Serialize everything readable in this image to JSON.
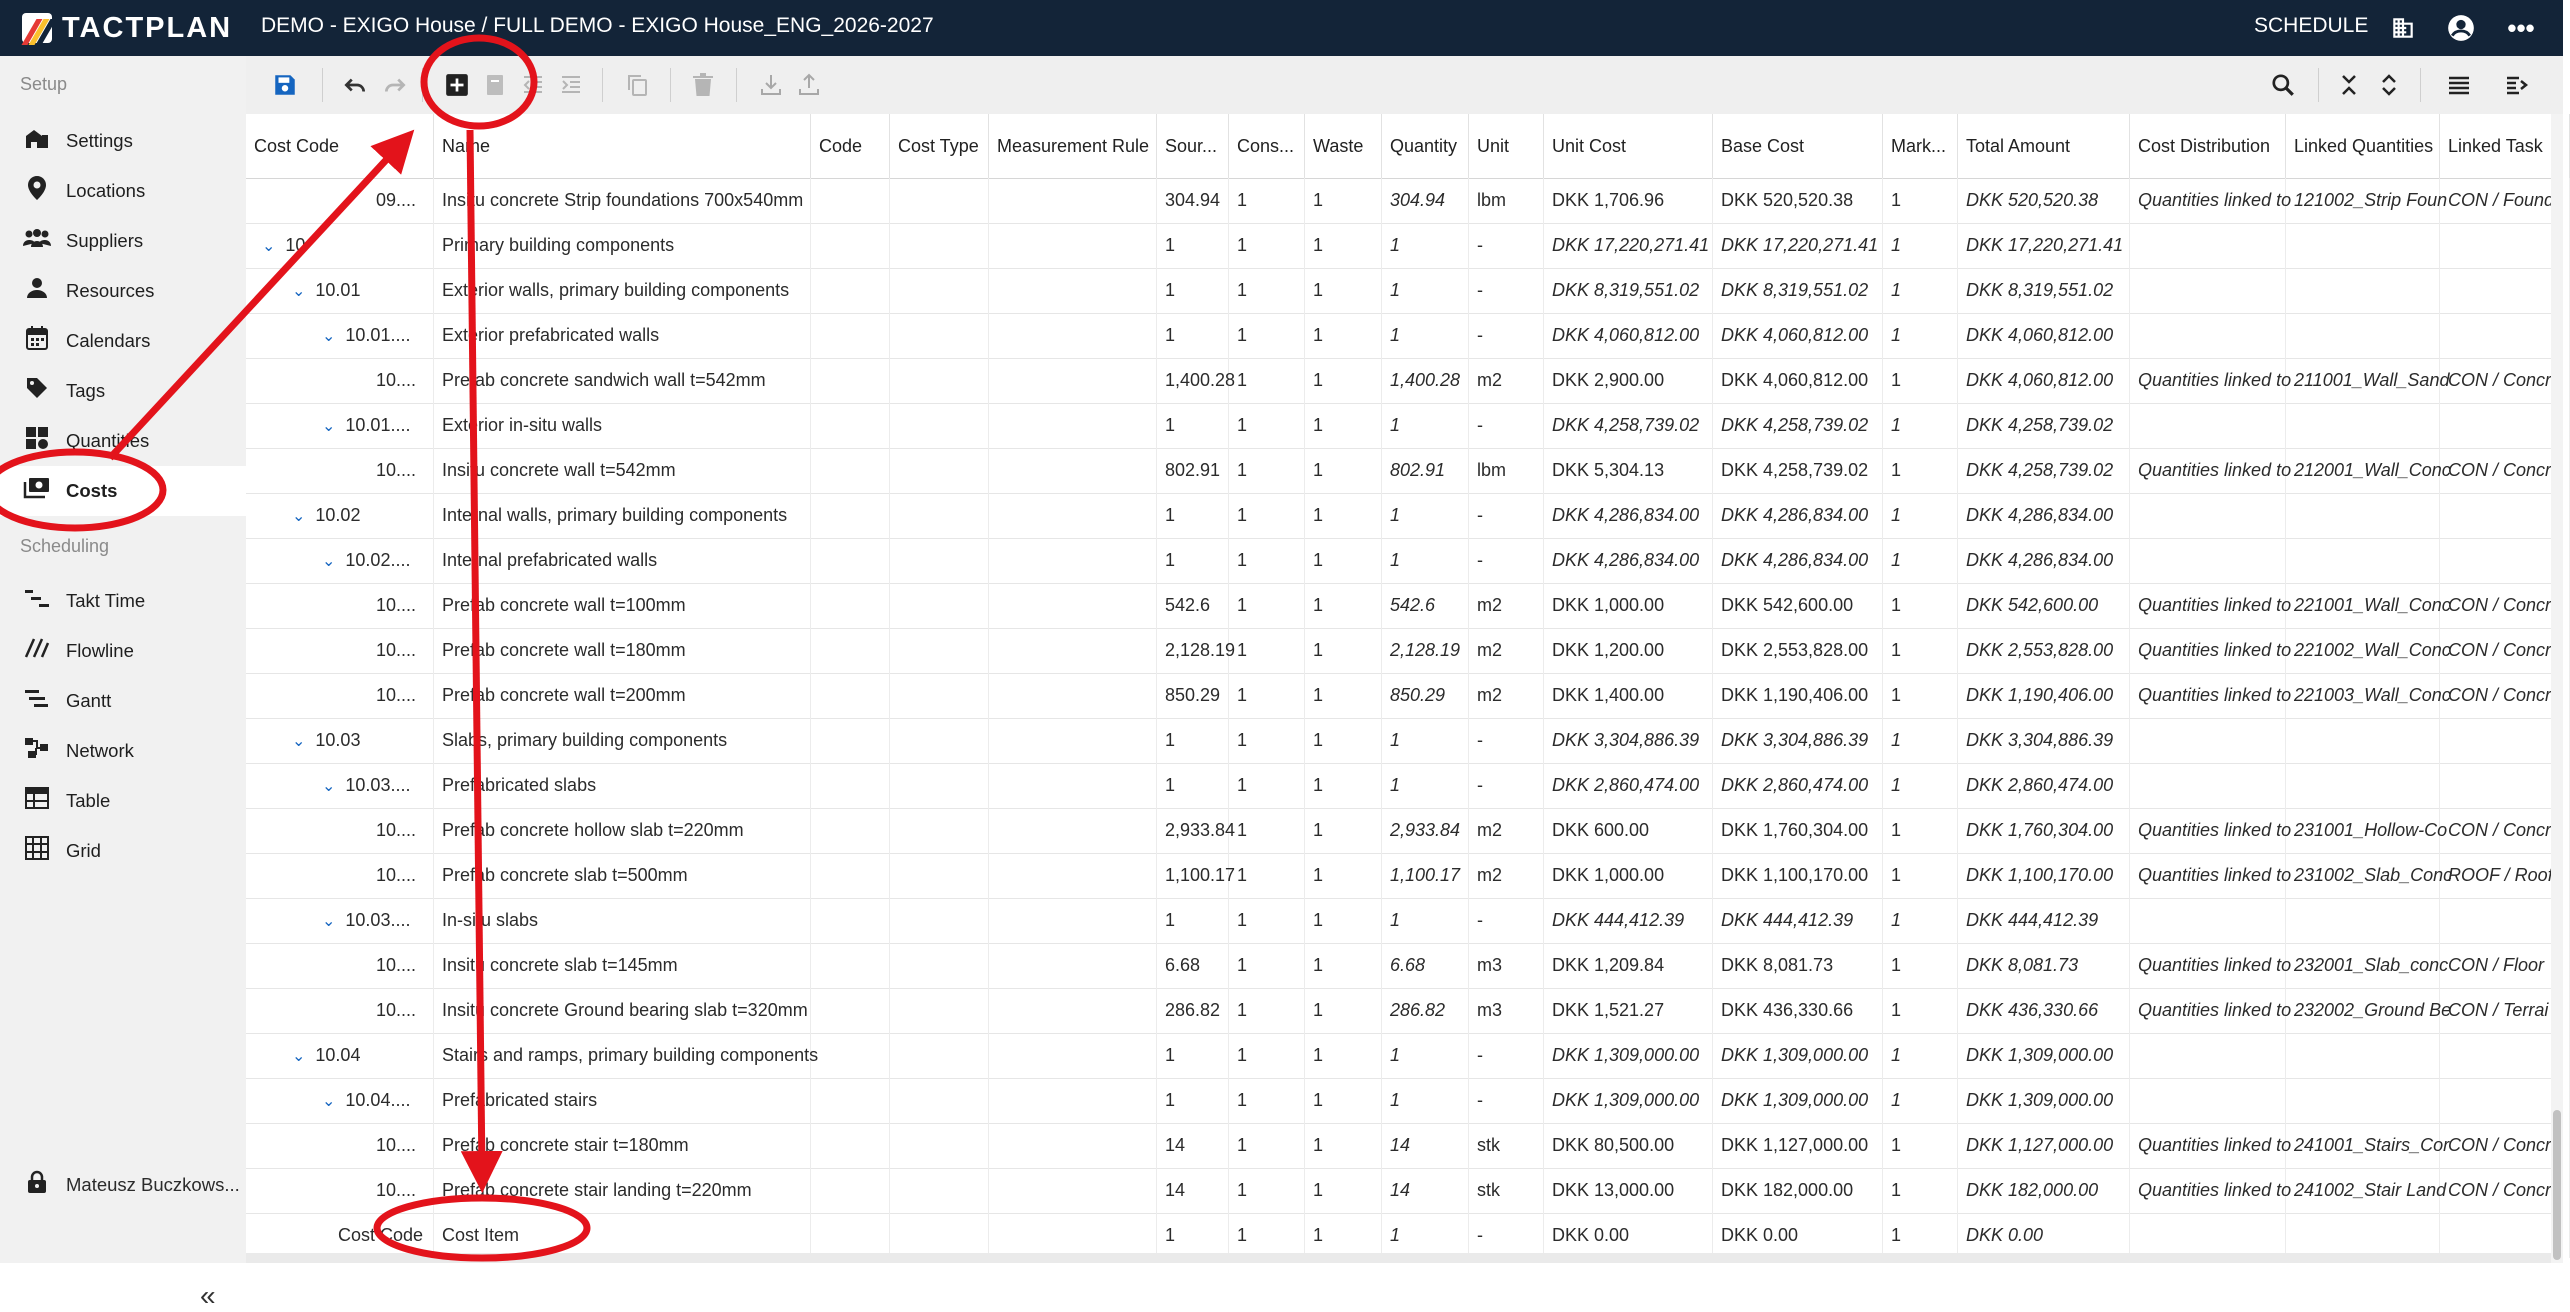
{
  "app": {
    "logo": "TACTPLAN",
    "project_title": "DEMO - EXIGO House / FULL DEMO - EXIGO House_ENG_2026-2027",
    "schedule_label": "SCHEDULE"
  },
  "icons": {
    "building": "building-icon",
    "account": "account-circle-icon",
    "more": "more-horizontal-icon"
  },
  "colors": {
    "topbar": "#132438",
    "accent": "#1565c0",
    "annotation": "#e3131b"
  },
  "sidebar": {
    "setup_label": "Setup",
    "setup_items": [
      {
        "label": "Settings",
        "icon": "settings-icon"
      },
      {
        "label": "Locations",
        "icon": "location-pin-icon"
      },
      {
        "label": "Suppliers",
        "icon": "suppliers-icon"
      },
      {
        "label": "Resources",
        "icon": "person-icon"
      },
      {
        "label": "Calendars",
        "icon": "calendar-icon"
      },
      {
        "label": "Tags",
        "icon": "tag-icon"
      },
      {
        "label": "Quantities",
        "icon": "quantities-icon"
      },
      {
        "label": "Costs",
        "icon": "costs-icon",
        "active": true
      }
    ],
    "scheduling_label": "Scheduling",
    "scheduling_items": [
      {
        "label": "Takt Time",
        "icon": "takt-time-icon"
      },
      {
        "label": "Flowline",
        "icon": "flowline-icon"
      },
      {
        "label": "Gantt",
        "icon": "gantt-icon"
      },
      {
        "label": "Network",
        "icon": "network-icon"
      },
      {
        "label": "Table",
        "icon": "table-icon"
      },
      {
        "label": "Grid",
        "icon": "grid-icon"
      }
    ],
    "user": "Mateusz Buczkows...",
    "collapse_glyph": "«"
  },
  "toolbar": {
    "left": [
      "save-icon",
      "undo-icon",
      "redo-icon",
      "add-item-icon",
      "add-child-icon",
      "outdent-icon",
      "indent-icon",
      "copy-icon",
      "delete-icon",
      "import-icon",
      "export-icon"
    ],
    "right": [
      "search-icon",
      "collapse-all-icon",
      "expand-all-icon",
      "row-density-icon",
      "column-settings-icon"
    ]
  },
  "table": {
    "columns": [
      "Cost Code",
      "Name",
      "Code",
      "Cost Type",
      "Measurement Rule",
      "Sour...",
      "Cons...",
      "Waste",
      "Quantity",
      "Unit",
      "Unit Cost",
      "Base Cost",
      "Mark...",
      "Total Amount",
      "Cost Distribution",
      "Linked Quantities",
      "Linked Task"
    ],
    "rows": [
      {
        "level": 3,
        "exp": false,
        "code": "09....",
        "name": "Insitu concrete Strip foundations 700x540mm",
        "src": "304.94",
        "cons": "1",
        "waste": "1",
        "qty": "304.94",
        "unit": "lbm",
        "unitcost": "DKK 1,706.96",
        "base": "DKK 520,520.38",
        "mark": "1",
        "total": "DKK 520,520.38",
        "dist": "Quantities linked to",
        "lq": "121002_Strip Foun",
        "lt": "CON / Found",
        "sum": false
      },
      {
        "level": 0,
        "exp": true,
        "code": "10",
        "name": "Primary building components",
        "src": "1",
        "cons": "1",
        "waste": "1",
        "qty": "1",
        "unit": "-",
        "unitcost": "DKK 17,220,271.41",
        "base": "DKK 17,220,271.41",
        "mark": "1",
        "total": "DKK 17,220,271.41",
        "dist": "",
        "lq": "",
        "lt": "",
        "sum": true
      },
      {
        "level": 1,
        "exp": true,
        "code": "10.01",
        "name": "Exterior walls, primary building components",
        "src": "1",
        "cons": "1",
        "waste": "1",
        "qty": "1",
        "unit": "-",
        "unitcost": "DKK 8,319,551.02",
        "base": "DKK 8,319,551.02",
        "mark": "1",
        "total": "DKK 8,319,551.02",
        "dist": "",
        "lq": "",
        "lt": "",
        "sum": true
      },
      {
        "level": 2,
        "exp": true,
        "code": "10.01....",
        "name": "Exterior prefabricated walls",
        "src": "1",
        "cons": "1",
        "waste": "1",
        "qty": "1",
        "unit": "-",
        "unitcost": "DKK 4,060,812.00",
        "base": "DKK 4,060,812.00",
        "mark": "1",
        "total": "DKK 4,060,812.00",
        "dist": "",
        "lq": "",
        "lt": "",
        "sum": true
      },
      {
        "level": 3,
        "exp": false,
        "code": "10....",
        "name": "Prefab concrete sandwich wall t=542mm",
        "src": "1,400.28",
        "cons": "1",
        "waste": "1",
        "qty": "1,400.28",
        "unit": "m2",
        "unitcost": "DKK 2,900.00",
        "base": "DKK 4,060,812.00",
        "mark": "1",
        "total": "DKK 4,060,812.00",
        "dist": "Quantities linked to",
        "lq": "211001_Wall_Sand",
        "lt": "CON / Concr",
        "sum": false
      },
      {
        "level": 2,
        "exp": true,
        "code": "10.01....",
        "name": "Exterior in-situ walls",
        "src": "1",
        "cons": "1",
        "waste": "1",
        "qty": "1",
        "unit": "-",
        "unitcost": "DKK 4,258,739.02",
        "base": "DKK 4,258,739.02",
        "mark": "1",
        "total": "DKK 4,258,739.02",
        "dist": "",
        "lq": "",
        "lt": "",
        "sum": true
      },
      {
        "level": 3,
        "exp": false,
        "code": "10....",
        "name": "Insitu concrete wall t=542mm",
        "src": "802.91",
        "cons": "1",
        "waste": "1",
        "qty": "802.91",
        "unit": "lbm",
        "unitcost": "DKK 5,304.13",
        "base": "DKK 4,258,739.02",
        "mark": "1",
        "total": "DKK 4,258,739.02",
        "dist": "Quantities linked to",
        "lq": "212001_Wall_Conc",
        "lt": "CON / Concr",
        "sum": false
      },
      {
        "level": 1,
        "exp": true,
        "code": "10.02",
        "name": "Internal walls, primary building components",
        "src": "1",
        "cons": "1",
        "waste": "1",
        "qty": "1",
        "unit": "-",
        "unitcost": "DKK 4,286,834.00",
        "base": "DKK 4,286,834.00",
        "mark": "1",
        "total": "DKK 4,286,834.00",
        "dist": "",
        "lq": "",
        "lt": "",
        "sum": true
      },
      {
        "level": 2,
        "exp": true,
        "code": "10.02....",
        "name": "Internal prefabricated walls",
        "src": "1",
        "cons": "1",
        "waste": "1",
        "qty": "1",
        "unit": "-",
        "unitcost": "DKK 4,286,834.00",
        "base": "DKK 4,286,834.00",
        "mark": "1",
        "total": "DKK 4,286,834.00",
        "dist": "",
        "lq": "",
        "lt": "",
        "sum": true
      },
      {
        "level": 3,
        "exp": false,
        "code": "10....",
        "name": "Prefab concrete wall t=100mm",
        "src": "542.6",
        "cons": "1",
        "waste": "1",
        "qty": "542.6",
        "unit": "m2",
        "unitcost": "DKK 1,000.00",
        "base": "DKK 542,600.00",
        "mark": "1",
        "total": "DKK 542,600.00",
        "dist": "Quantities linked to",
        "lq": "221001_Wall_Conc",
        "lt": "CON / Concr",
        "sum": false
      },
      {
        "level": 3,
        "exp": false,
        "code": "10....",
        "name": "Prefab concrete wall t=180mm",
        "src": "2,128.19",
        "cons": "1",
        "waste": "1",
        "qty": "2,128.19",
        "unit": "m2",
        "unitcost": "DKK 1,200.00",
        "base": "DKK 2,553,828.00",
        "mark": "1",
        "total": "DKK 2,553,828.00",
        "dist": "Quantities linked to",
        "lq": "221002_Wall_Conc",
        "lt": "CON / Concr",
        "sum": false
      },
      {
        "level": 3,
        "exp": false,
        "code": "10....",
        "name": "Prefab concrete wall t=200mm",
        "src": "850.29",
        "cons": "1",
        "waste": "1",
        "qty": "850.29",
        "unit": "m2",
        "unitcost": "DKK 1,400.00",
        "base": "DKK 1,190,406.00",
        "mark": "1",
        "total": "DKK 1,190,406.00",
        "dist": "Quantities linked to",
        "lq": "221003_Wall_Conc",
        "lt": "CON / Concr",
        "sum": false
      },
      {
        "level": 1,
        "exp": true,
        "code": "10.03",
        "name": "Slabs, primary building components",
        "src": "1",
        "cons": "1",
        "waste": "1",
        "qty": "1",
        "unit": "-",
        "unitcost": "DKK 3,304,886.39",
        "base": "DKK 3,304,886.39",
        "mark": "1",
        "total": "DKK 3,304,886.39",
        "dist": "",
        "lq": "",
        "lt": "",
        "sum": true
      },
      {
        "level": 2,
        "exp": true,
        "code": "10.03....",
        "name": "Prefabricated slabs",
        "src": "1",
        "cons": "1",
        "waste": "1",
        "qty": "1",
        "unit": "-",
        "unitcost": "DKK 2,860,474.00",
        "base": "DKK 2,860,474.00",
        "mark": "1",
        "total": "DKK 2,860,474.00",
        "dist": "",
        "lq": "",
        "lt": "",
        "sum": true
      },
      {
        "level": 3,
        "exp": false,
        "code": "10....",
        "name": "Prefab concrete hollow slab t=220mm",
        "src": "2,933.84",
        "cons": "1",
        "waste": "1",
        "qty": "2,933.84",
        "unit": "m2",
        "unitcost": "DKK 600.00",
        "base": "DKK 1,760,304.00",
        "mark": "1",
        "total": "DKK 1,760,304.00",
        "dist": "Quantities linked to",
        "lq": "231001_Hollow-Co",
        "lt": "CON / Concr",
        "sum": false
      },
      {
        "level": 3,
        "exp": false,
        "code": "10....",
        "name": "Prefab concrete slab t=500mm",
        "src": "1,100.17",
        "cons": "1",
        "waste": "1",
        "qty": "1,100.17",
        "unit": "m2",
        "unitcost": "DKK 1,000.00",
        "base": "DKK 1,100,170.00",
        "mark": "1",
        "total": "DKK 1,100,170.00",
        "dist": "Quantities linked to",
        "lq": "231002_Slab_Conc",
        "lt": "ROOF / Roof",
        "sum": false
      },
      {
        "level": 2,
        "exp": true,
        "code": "10.03....",
        "name": "In-situ slabs",
        "src": "1",
        "cons": "1",
        "waste": "1",
        "qty": "1",
        "unit": "-",
        "unitcost": "DKK 444,412.39",
        "base": "DKK 444,412.39",
        "mark": "1",
        "total": "DKK 444,412.39",
        "dist": "",
        "lq": "",
        "lt": "",
        "sum": true
      },
      {
        "level": 3,
        "exp": false,
        "code": "10....",
        "name": "Insitu concrete slab t=145mm",
        "src": "6.68",
        "cons": "1",
        "waste": "1",
        "qty": "6.68",
        "unit": "m3",
        "unitcost": "DKK 1,209.84",
        "base": "DKK 8,081.73",
        "mark": "1",
        "total": "DKK 8,081.73",
        "dist": "Quantities linked to",
        "lq": "232001_Slab_conc",
        "lt": "CON / Floor",
        "sum": false
      },
      {
        "level": 3,
        "exp": false,
        "code": "10....",
        "name": "Insitu concrete Ground bearing slab t=320mm",
        "src": "286.82",
        "cons": "1",
        "waste": "1",
        "qty": "286.82",
        "unit": "m3",
        "unitcost": "DKK 1,521.27",
        "base": "DKK 436,330.66",
        "mark": "1",
        "total": "DKK 436,330.66",
        "dist": "Quantities linked to",
        "lq": "232002_Ground Be",
        "lt": "CON / Terrai",
        "sum": false
      },
      {
        "level": 1,
        "exp": true,
        "code": "10.04",
        "name": "Stairs and ramps, primary building components",
        "src": "1",
        "cons": "1",
        "waste": "1",
        "qty": "1",
        "unit": "-",
        "unitcost": "DKK 1,309,000.00",
        "base": "DKK 1,309,000.00",
        "mark": "1",
        "total": "DKK 1,309,000.00",
        "dist": "",
        "lq": "",
        "lt": "",
        "sum": true
      },
      {
        "level": 2,
        "exp": true,
        "code": "10.04....",
        "name": "Prefabricated stairs",
        "src": "1",
        "cons": "1",
        "waste": "1",
        "qty": "1",
        "unit": "-",
        "unitcost": "DKK 1,309,000.00",
        "base": "DKK 1,309,000.00",
        "mark": "1",
        "total": "DKK 1,309,000.00",
        "dist": "",
        "lq": "",
        "lt": "",
        "sum": true
      },
      {
        "level": 3,
        "exp": false,
        "code": "10....",
        "name": "Prefab concrete stair t=180mm",
        "src": "14",
        "cons": "1",
        "waste": "1",
        "qty": "14",
        "unit": "stk",
        "unitcost": "DKK 80,500.00",
        "base": "DKK 1,127,000.00",
        "mark": "1",
        "total": "DKK 1,127,000.00",
        "dist": "Quantities linked to",
        "lq": "241001_Stairs_Cor",
        "lt": "CON / Concr",
        "sum": false
      },
      {
        "level": 3,
        "exp": false,
        "code": "10....",
        "name": "Prefab concrete stair landing t=220mm",
        "src": "14",
        "cons": "1",
        "waste": "1",
        "qty": "14",
        "unit": "stk",
        "unitcost": "DKK 13,000.00",
        "base": "DKK 182,000.00",
        "mark": "1",
        "total": "DKK 182,000.00",
        "dist": "Quantities linked to",
        "lq": "241002_Stair Land",
        "lt": "CON / Concr",
        "sum": false
      },
      {
        "level": 4,
        "exp": false,
        "code": "Cost Code",
        "name": "Cost Item",
        "src": "1",
        "cons": "1",
        "waste": "1",
        "qty": "1",
        "unit": "-",
        "unitcost": "DKK 0.00",
        "base": "DKK 0.00",
        "mark": "1",
        "total": "DKK 0.00",
        "dist": "",
        "lq": "",
        "lt": "",
        "sum": false
      }
    ]
  }
}
